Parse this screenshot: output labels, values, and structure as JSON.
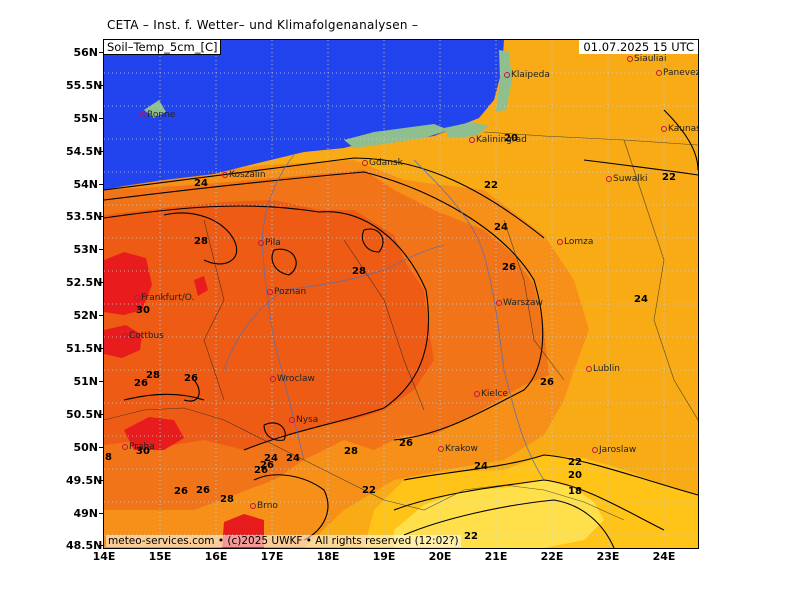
{
  "header": {
    "title": "CETA – Inst. f. Wetter– und Klimafolgenanalysen –",
    "variable": "Soil–Temp_5cm_[C]",
    "datetime": "01.07.2025 15 UTC",
    "credit": "meteo-services.com • (c)2025 UWKF • All rights reserved (12:02?)"
  },
  "axes": {
    "y_ticks": [
      "56N",
      "55.5N",
      "55N",
      "54.5N",
      "54N",
      "53.5N",
      "53N",
      "52.5N",
      "52N",
      "51.5N",
      "51N",
      "50.5N",
      "50N",
      "49.5N",
      "49N",
      "48.5N"
    ],
    "x_ticks": [
      "14E",
      "15E",
      "16E",
      "17E",
      "18E",
      "19E",
      "20E",
      "21E",
      "22E",
      "23E",
      "24E"
    ]
  },
  "colors": {
    "sea": "#2244ee",
    "coast_land": "#8fbf8f",
    "t_18": "#ffe04a",
    "t_20": "#ffc417",
    "t_22": "#f8ab14",
    "t_24": "#f69018",
    "t_26": "#f27418",
    "t_28": "#ee5b14",
    "t_30": "#e81c1c",
    "grid": "#c8c8c8",
    "city_marker": "#c0143c"
  },
  "cities": [
    {
      "name": "Siauliai"
    },
    {
      "name": "Panevezys"
    },
    {
      "name": "Klaipeda"
    },
    {
      "name": "Kaunas"
    },
    {
      "name": "Ronne"
    },
    {
      "name": "Kaliningrad"
    },
    {
      "name": "Gdansk"
    },
    {
      "name": "Koszalin"
    },
    {
      "name": "Suwalki"
    },
    {
      "name": "Pila"
    },
    {
      "name": "Lomza"
    },
    {
      "name": "Frankfurt/O."
    },
    {
      "name": "Poznan"
    },
    {
      "name": "Warszaw"
    },
    {
      "name": "Cottbus"
    },
    {
      "name": "Lublin"
    },
    {
      "name": "Wroclaw"
    },
    {
      "name": "Kielce"
    },
    {
      "name": "Nysa"
    },
    {
      "name": "Praha"
    },
    {
      "name": "Krakow"
    },
    {
      "name": "Jaroslaw"
    },
    {
      "name": "Brno"
    }
  ],
  "contour_labels": [
    "20",
    "22",
    "24",
    "22",
    "24",
    "28",
    "24",
    "28",
    "26",
    "26",
    "24",
    "28",
    "30",
    "26",
    "26",
    "28",
    "26",
    "26",
    "30",
    "26",
    "24",
    "26",
    "22",
    "24",
    "22",
    "26",
    "28",
    "20",
    "18",
    "22",
    "8"
  ]
}
